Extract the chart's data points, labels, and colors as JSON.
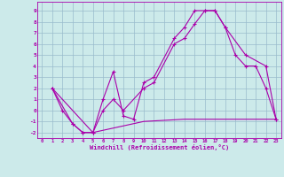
{
  "bg_color": "#cceaea",
  "grid_color": "#99bbcc",
  "line_color": "#aa00aa",
  "xlabel": "Windchill (Refroidissement éolien,°C)",
  "xlim": [
    -0.5,
    23.5
  ],
  "ylim": [
    -2.5,
    9.8
  ],
  "xticks": [
    0,
    1,
    2,
    3,
    4,
    5,
    6,
    7,
    8,
    9,
    10,
    11,
    12,
    13,
    14,
    15,
    16,
    17,
    18,
    19,
    20,
    21,
    22,
    23
  ],
  "yticks": [
    -2,
    -1,
    0,
    1,
    2,
    3,
    4,
    5,
    6,
    7,
    8,
    9
  ],
  "line1_x": [
    1,
    2,
    3,
    4,
    5,
    6,
    7,
    8,
    9,
    10,
    11,
    13,
    14,
    15,
    16,
    17,
    18,
    19,
    20,
    21,
    22,
    23
  ],
  "line1_y": [
    2,
    0,
    -1.2,
    -2,
    -2,
    1,
    3.5,
    -0.5,
    -0.8,
    2.5,
    3,
    6.5,
    7.5,
    9,
    9,
    9,
    7.5,
    5,
    4,
    4,
    2,
    -0.8
  ],
  "line2_x": [
    1,
    3,
    4,
    5,
    6,
    7,
    8,
    10,
    11,
    13,
    14,
    15,
    16,
    17,
    18,
    20,
    22,
    23
  ],
  "line2_y": [
    2,
    -1.2,
    -2,
    -2,
    0,
    1,
    0,
    2,
    2.5,
    6,
    6.5,
    7.8,
    9,
    9,
    7.5,
    5.0,
    4,
    -0.8
  ],
  "line3_x": [
    1,
    5,
    10,
    14,
    15,
    16,
    17,
    18,
    19,
    20,
    21,
    22,
    23
  ],
  "line3_y": [
    2,
    -2,
    -1.0,
    -0.8,
    -0.8,
    -0.8,
    -0.8,
    -0.8,
    -0.8,
    -0.8,
    -0.8,
    -0.8,
    -0.8
  ]
}
